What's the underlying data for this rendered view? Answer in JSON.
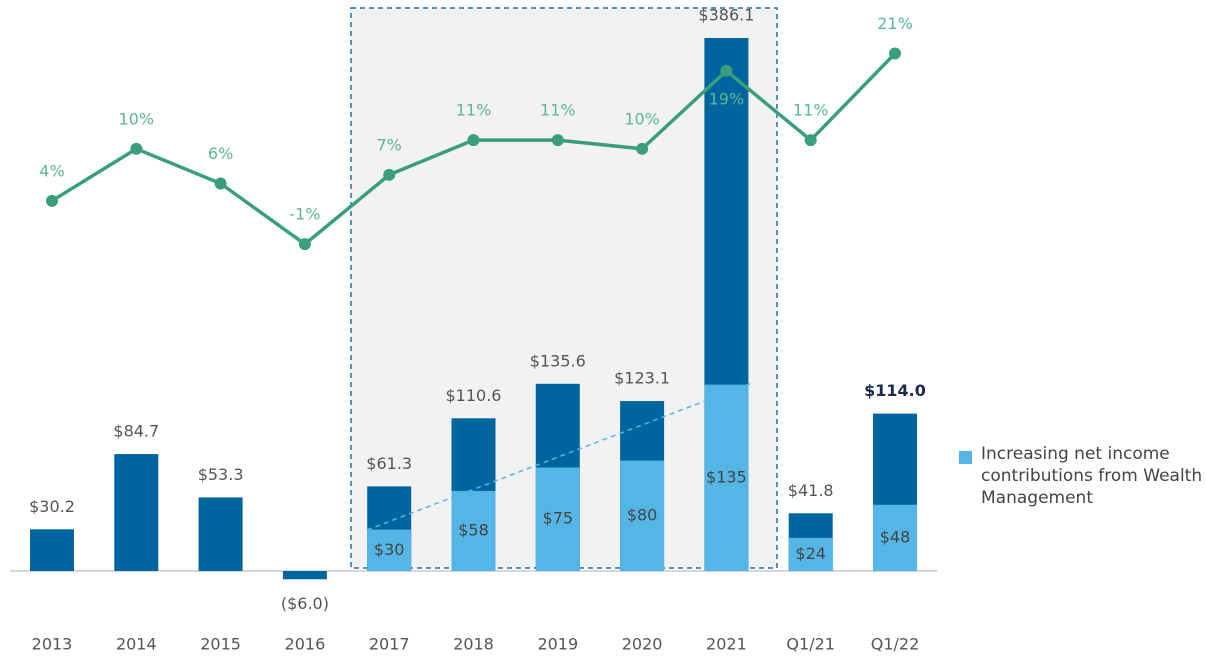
{
  "chart_data": {
    "type": "bar",
    "categories": [
      "2013",
      "2014",
      "2015",
      "2016",
      "2017",
      "2018",
      "2019",
      "2020",
      "2021",
      "Q1/21",
      "Q1/22"
    ],
    "values": [
      30.2,
      84.7,
      53.3,
      -6.0,
      61.3,
      110.6,
      135.6,
      123.1,
      386.1,
      41.8,
      114.0
    ],
    "value_labels": [
      "$30.2",
      "$84.7",
      "$53.3",
      "($6.0)",
      "$61.3",
      "$110.6",
      "$135.6",
      "$123.1",
      "$386.1",
      "$41.8",
      "$114.0"
    ],
    "color": "#00649f",
    "ylim": [
      -10,
      400
    ],
    "y2lim": [
      -40.3,
      25
    ],
    "series": [
      {
        "name": "Increasing net income contributions from Wealth Management",
        "color": "#53b6e6",
        "values": [
          null,
          null,
          null,
          null,
          30,
          58,
          75,
          80,
          135,
          24,
          48
        ],
        "value_labels": [
          null,
          null,
          null,
          null,
          "$30",
          "$58",
          "$75",
          "$80",
          "$135",
          "$24",
          "$48"
        ]
      },
      {
        "type": "line",
        "axis": "y2",
        "color": "#3a9e7c",
        "values": [
          4,
          10,
          6,
          -1,
          7,
          11,
          11,
          10,
          19,
          11,
          21
        ],
        "value_labels": [
          "4%",
          "10%",
          "6%",
          "-1%",
          "7%",
          "11%",
          "11%",
          "10%",
          "19%",
          "11%",
          "21%"
        ]
      }
    ]
  }
}
